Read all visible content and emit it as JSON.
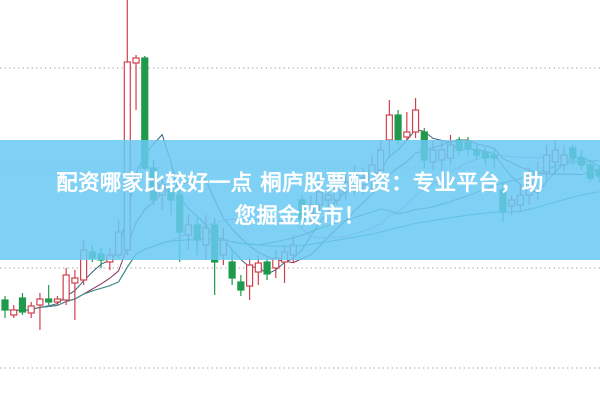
{
  "banner": {
    "line1": "配资哪家比较好一点 桐庐股票配资：专业平台，助",
    "line2": "您掘金股市！"
  },
  "colors": {
    "up": "#d2404c",
    "down": "#1f9a4c",
    "grid": "#aaaaaa",
    "banner": "#69c8f2",
    "ma": [
      "#35627f",
      "#8a3552",
      "#e38ee3",
      "#4f7d3c",
      "#3b8c92"
    ]
  },
  "chart_data": {
    "type": "candlestick",
    "grid": "horizontal dotted",
    "ylim": [
      0,
      40.1
    ],
    "gridlines": [
      33.3,
      23.3,
      13.3,
      3.3
    ],
    "moving_averages": [
      5,
      10,
      20,
      30,
      60
    ],
    "ohlc": [
      [
        10.1,
        10.5,
        8.3,
        9.1
      ],
      [
        8.6,
        9.6,
        8.3,
        9.1
      ],
      [
        10.3,
        10.8,
        8.6,
        8.9
      ],
      [
        8.8,
        9.9,
        8.3,
        9.5
      ],
      [
        9.6,
        10.8,
        7.1,
        10.2
      ],
      [
        10.2,
        11.6,
        9.6,
        9.9
      ],
      [
        9.9,
        10.5,
        9.6,
        10.2
      ],
      [
        10.1,
        13.3,
        9.6,
        12.6
      ],
      [
        11.8,
        13.1,
        8.1,
        12.3
      ],
      [
        12.1,
        16.1,
        11.6,
        15.1
      ],
      [
        14.9,
        15.6,
        13.9,
        14.3
      ],
      [
        14.7,
        15.3,
        13.3,
        14.1
      ],
      [
        13.9,
        15.3,
        13.1,
        14.6
      ],
      [
        14.6,
        18.1,
        14.3,
        16.9
      ],
      [
        15.1,
        40.1,
        14.6,
        33.9
      ],
      [
        33.8,
        34.6,
        29.1,
        34.3
      ],
      [
        34.3,
        34.5,
        23.1,
        23.3
      ],
      [
        23.3,
        24.1,
        19.6,
        20.1
      ],
      [
        20.6,
        22.6,
        19.1,
        21.6
      ],
      [
        21.1,
        22.1,
        18.6,
        20.1
      ],
      [
        20.6,
        21.1,
        13.9,
        16.9
      ],
      [
        16.6,
        18.6,
        15.1,
        17.6
      ],
      [
        17.6,
        18.3,
        14.6,
        16.1
      ],
      [
        15.6,
        18.6,
        14.1,
        17.3
      ],
      [
        17.6,
        18.3,
        10.6,
        13.9
      ],
      [
        14.6,
        17.3,
        13.6,
        16.1
      ],
      [
        13.9,
        15.1,
        11.6,
        12.3
      ],
      [
        11.9,
        12.6,
        10.5,
        11.1
      ],
      [
        11.5,
        14.3,
        10.1,
        13.6
      ],
      [
        12.9,
        14.6,
        11.6,
        13.8
      ],
      [
        13.9,
        14.5,
        12.1,
        12.7
      ],
      [
        13.3,
        15.1,
        12.3,
        14.3
      ],
      [
        13.9,
        15.6,
        11.8,
        14.9
      ],
      [
        14.6,
        16.6,
        13.9,
        15.6
      ],
      [
        20.1,
        20.6,
        17.3,
        18.1
      ],
      [
        18.8,
        20.6,
        17.6,
        19.6
      ],
      [
        19.6,
        21.9,
        18.9,
        20.9
      ],
      [
        20.1,
        21.6,
        19.1,
        20.6
      ],
      [
        20.1,
        22.6,
        19.6,
        21.6
      ],
      [
        20.9,
        22.9,
        20.1,
        21.9
      ],
      [
        21.3,
        23.6,
        20.6,
        22.6
      ],
      [
        21.6,
        23.3,
        20.6,
        22.3
      ],
      [
        22.1,
        24.6,
        21.1,
        23.6
      ],
      [
        23.1,
        26.1,
        22.1,
        25.1
      ],
      [
        26.1,
        30.1,
        24.3,
        28.6
      ],
      [
        28.6,
        29.1,
        25.6,
        26.1
      ],
      [
        26.4,
        28.9,
        26.1,
        26.9
      ],
      [
        26.9,
        30.3,
        26.3,
        29.1
      ],
      [
        26.9,
        27.3,
        23.3,
        24.1
      ],
      [
        23.9,
        26.1,
        23.1,
        25.1
      ],
      [
        24.1,
        26.1,
        23.1,
        25.1
      ],
      [
        24.3,
        26.6,
        23.6,
        25.6
      ],
      [
        26.1,
        26.4,
        24.6,
        25.1
      ],
      [
        25.9,
        26.4,
        24.6,
        25.3
      ],
      [
        25.1,
        25.6,
        24.1,
        24.6
      ],
      [
        24.9,
        25.4,
        23.6,
        24.3
      ],
      [
        24.6,
        25.1,
        23.3,
        24.3
      ],
      [
        21.1,
        21.9,
        17.9,
        18.9
      ],
      [
        19.5,
        20.6,
        18.6,
        20.1
      ],
      [
        19.6,
        21.6,
        18.9,
        20.6
      ],
      [
        20.6,
        23.3,
        19.6,
        22.1
      ],
      [
        21.1,
        23.9,
        20.1,
        22.3
      ],
      [
        22.9,
        25.6,
        22.1,
        24.6
      ],
      [
        23.9,
        26.1,
        22.6,
        25.1
      ],
      [
        23.6,
        25.6,
        22.9,
        24.6
      ],
      [
        25.3,
        25.6,
        23.6,
        24.3
      ],
      [
        24.3,
        25.1,
        23.1,
        23.6
      ],
      [
        23.6,
        24.1,
        21.9,
        22.3
      ],
      [
        23.1,
        23.6,
        21.9,
        22.5
      ]
    ]
  }
}
